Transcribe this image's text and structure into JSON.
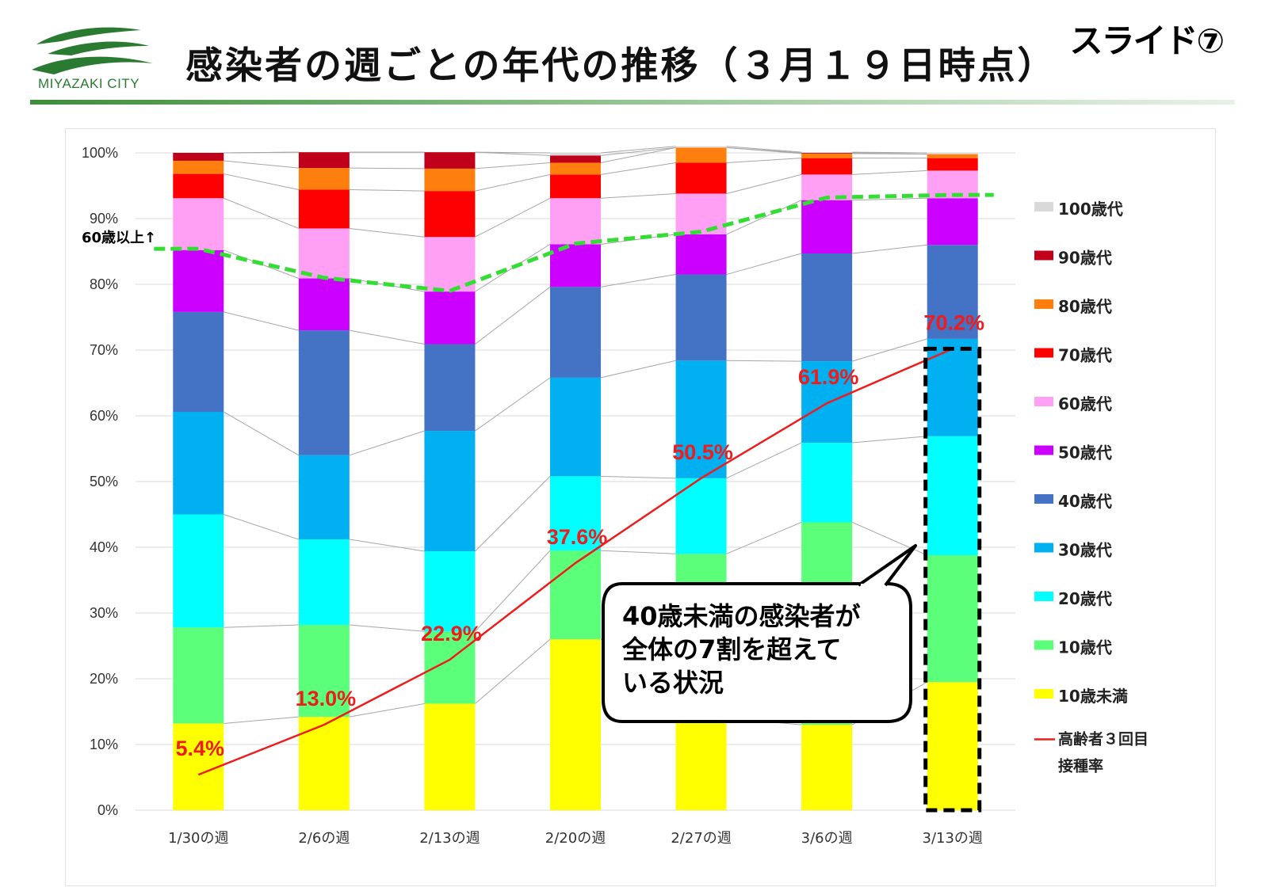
{
  "header": {
    "logo_text": "MIYAZAKI CITY",
    "title": "感染者の週ごとの年代の推移（３月１９日時点）",
    "slide_label": "スライド⑦",
    "brand_color": "#2b7a32"
  },
  "chart_data": {
    "type": "bar",
    "stacked": true,
    "percent": true,
    "categories": [
      "1/30の週",
      "2/6の週",
      "2/13の週",
      "2/20の週",
      "2/27の週",
      "3/6の週",
      "3/13の週"
    ],
    "ylim": [
      0,
      100
    ],
    "yticks": [
      "0%",
      "10%",
      "20%",
      "30%",
      "40%",
      "50%",
      "60%",
      "70%",
      "80%",
      "90%",
      "100%"
    ],
    "grid": true,
    "legend_position": "right",
    "series": [
      {
        "name": "10歳未満",
        "color": "#ffff00",
        "values": [
          13.2,
          14.2,
          16.2,
          26.0,
          14.0,
          13.0,
          19.5
        ]
      },
      {
        "name": "10歳代",
        "color": "#5cff7a",
        "values": [
          14.6,
          14.0,
          11.0,
          13.5,
          25.0,
          30.8,
          19.3
        ]
      },
      {
        "name": "20歳代",
        "color": "#00ffff",
        "values": [
          17.2,
          13.0,
          12.2,
          11.3,
          11.5,
          12.1,
          18.1
        ]
      },
      {
        "name": "30歳代",
        "color": "#00b0f0",
        "values": [
          15.6,
          12.8,
          18.3,
          15.0,
          17.9,
          12.4,
          14.8
        ]
      },
      {
        "name": "40歳代",
        "color": "#4472c4",
        "values": [
          15.2,
          19.0,
          13.2,
          13.8,
          13.1,
          16.4,
          14.3
        ]
      },
      {
        "name": "50歳代",
        "color": "#cc00ff",
        "values": [
          9.4,
          7.9,
          8.0,
          6.5,
          6.1,
          8.1,
          7.1
        ]
      },
      {
        "name": "60歳代",
        "color": "#ffa0f5",
        "values": [
          7.9,
          7.6,
          8.3,
          7.0,
          6.2,
          3.9,
          4.2
        ]
      },
      {
        "name": "70歳代",
        "color": "#ff0000",
        "values": [
          3.7,
          5.9,
          7.0,
          3.6,
          4.7,
          2.5,
          1.9
        ]
      },
      {
        "name": "80歳代",
        "color": "#ff7f0e",
        "values": [
          2.0,
          3.3,
          3.4,
          1.8,
          2.3,
          0.7,
          0.6
        ]
      },
      {
        "name": "90歳代",
        "color": "#c0001b",
        "values": [
          1.2,
          2.4,
          2.5,
          1.1,
          0.0,
          0.1,
          0.0
        ]
      },
      {
        "name": "100歳代",
        "color": "#d9d9d9",
        "values": [
          0.0,
          0.0,
          0.0,
          0.4,
          0.2,
          0.1,
          0.2
        ]
      }
    ],
    "line_series": {
      "name": "高齢者３回目接種率",
      "legend_lines": [
        "高齢者３回目",
        "接種率"
      ],
      "color": "#ee1c1c",
      "values": [
        5.4,
        13.0,
        22.9,
        37.6,
        50.5,
        61.9,
        70.2
      ],
      "labels": [
        "5.4%",
        "13.0%",
        "22.9%",
        "37.6%",
        "50.5%",
        "61.9%",
        "70.2%"
      ]
    },
    "threshold_line": {
      "label": "60歳以上↑",
      "color": "#33dd33",
      "values": [
        85.4,
        81.0,
        79.0,
        86.2,
        88.0,
        93.2,
        93.6
      ]
    },
    "highlight_category": "3/13の週",
    "callout": {
      "lines": [
        "40歳未満の感染者が",
        "全体の7割を超えて",
        "いる状況"
      ]
    }
  }
}
